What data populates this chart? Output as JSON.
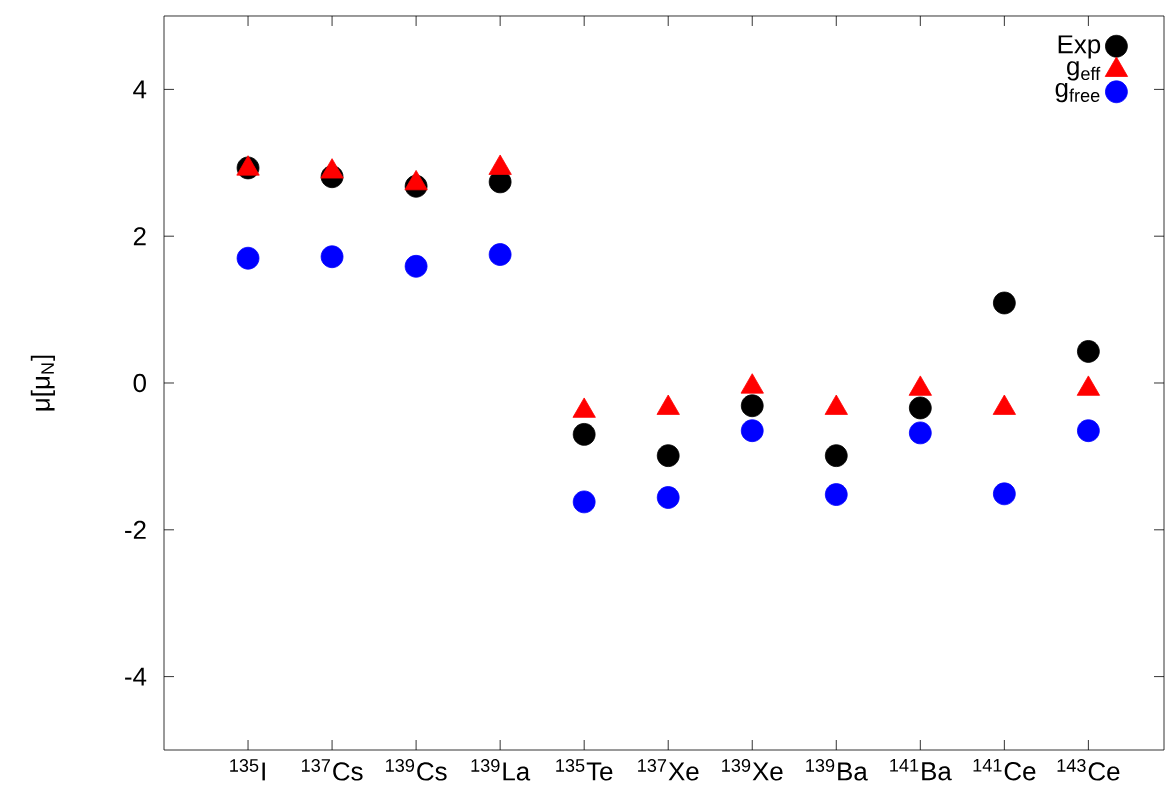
{
  "chart_data": {
    "type": "scatter",
    "ylabel": "μ[μ$_{N}$]",
    "categories": [
      "$^{135}$I",
      "$^{137}$Cs",
      "$^{139}$Cs",
      "$^{139}$La",
      "$^{135}$Te",
      "$^{137}$Xe",
      "$^{139}$Xe",
      "$^{139}$Ba",
      "$^{141}$Ba",
      "$^{141}$Ce",
      "$^{143}$Ce"
    ],
    "series": [
      {
        "name": "Exp",
        "color": "#000000",
        "marker": "circle",
        "values": [
          2.93,
          2.81,
          2.68,
          2.74,
          -0.7,
          -0.99,
          -0.31,
          -0.99,
          -0.34,
          1.09,
          0.43
        ]
      },
      {
        "name": "g$_{eff}$",
        "color": "#ff0000",
        "marker": "triangle",
        "values": [
          2.92,
          2.88,
          2.72,
          2.93,
          -0.38,
          -0.34,
          -0.05,
          -0.34,
          -0.08,
          -0.34,
          -0.08
        ]
      },
      {
        "name": "g$_{free}$",
        "color": "#0000ff",
        "marker": "circle",
        "values": [
          1.7,
          1.72,
          1.59,
          1.75,
          -1.62,
          -1.56,
          -0.65,
          -1.52,
          -0.68,
          -1.51,
          -0.65
        ]
      }
    ],
    "ylim": [
      -5,
      5
    ],
    "yticks": [
      -4,
      -2,
      0,
      2,
      4
    ],
    "grid": false,
    "legend": "top right"
  }
}
